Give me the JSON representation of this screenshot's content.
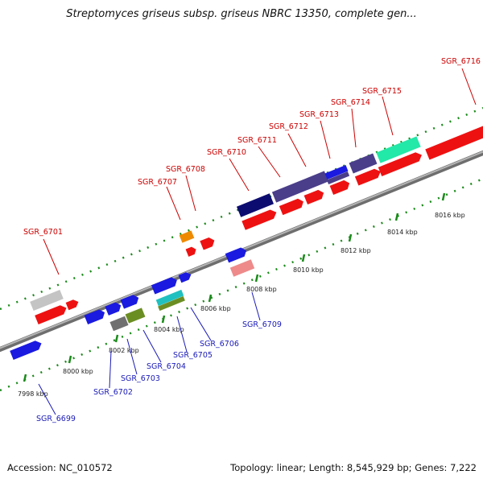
{
  "title": "Streptomyces griseus subsp. griseus NBRC 13350, complete gen...",
  "footer": {
    "accession": "Accession: NC_010572",
    "topology": "Topology: linear; Length: 8,545,929 bp; Genes: 7,222"
  },
  "scale_labels": [
    "7998 kbp",
    "8000 kbp",
    "8002 kbp",
    "8004 kbp",
    "8006 kbp",
    "8008 kbp",
    "8010 kbp",
    "8012 kbp",
    "8014 kbp",
    "8016 kbp"
  ],
  "gene_labels_top": [
    "SGR_6701",
    "SGR_6707",
    "SGR_6708",
    "SGR_6710",
    "SGR_6711",
    "SGR_6712",
    "SGR_6713",
    "SGR_6714",
    "SGR_6715",
    "SGR_6716"
  ],
  "gene_labels_bottom": [
    "SGR_6699",
    "SGR_6702",
    "SGR_6703",
    "SGR_6704",
    "SGR_6705",
    "SGR_6706",
    "SGR_6709"
  ],
  "colors": {
    "forward_gene": "#ee1111",
    "reverse_gene": "#1a1ae0",
    "label_top": "#cc0000",
    "label_bottom": "#1a1ab8",
    "tick": "#1a8a1a",
    "backbone": "#8a8a8a"
  }
}
